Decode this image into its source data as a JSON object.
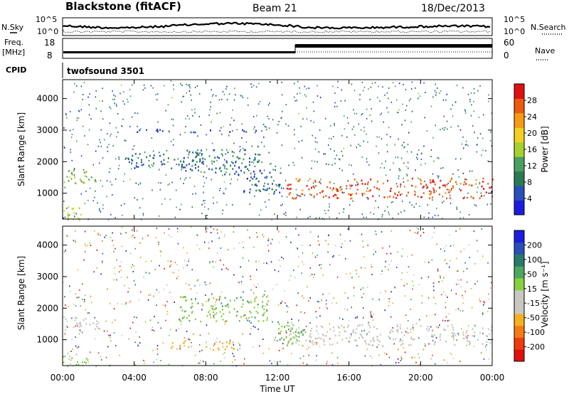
{
  "header": {
    "station": "Blackstone (fitACF)",
    "beam": "Beam 21",
    "date": "18/Dec/2013"
  },
  "summary": {
    "left_noise_label": "N.Sky",
    "right_noise_label": "N.Search",
    "left_noise_ticks": [
      "10^5",
      "10^0"
    ],
    "right_noise_ticks": [
      "10^5",
      "10^0"
    ],
    "freq_label_1": "Freq.",
    "freq_label_2": "[MHz]",
    "freq_ticks": [
      "18",
      "8"
    ],
    "nave_label": "Nave",
    "nave_ticks": [
      "60",
      "0"
    ],
    "cpid_label": "CPID",
    "cpid_value": "twofsound 3501"
  },
  "chart_data": [
    {
      "type": "heatmap",
      "ylabel": "Slant Range [km]",
      "y_ticks": [
        "1000",
        "2000",
        "3000",
        "4000"
      ],
      "ylim": [
        180,
        4600
      ],
      "x_ticks": [
        "00:00",
        "04:00",
        "08:00",
        "12:00",
        "16:00",
        "20:00",
        "00:00"
      ],
      "xlim_hours": [
        0,
        24
      ],
      "colorbar": {
        "label": "Power [dB]",
        "ticks": [
          "28",
          "24",
          "20",
          "16",
          "12",
          "8",
          "4"
        ],
        "range": [
          0,
          30
        ],
        "colors": [
          "#1c1ce0",
          "#2850b8",
          "#2a7a55",
          "#4aa060",
          "#a8d030",
          "#f2d020",
          "#f59a15",
          "#ee5a10",
          "#e01010"
        ]
      },
      "features": [
        {
          "t": [
            0.0,
            2.0
          ],
          "range": [
            1300,
            1750
          ],
          "value": 14
        },
        {
          "t": [
            0.0,
            1.5
          ],
          "range": [
            180,
            600
          ],
          "value": 16
        },
        {
          "t": [
            3.5,
            8.0
          ],
          "range": [
            1800,
            2300
          ],
          "value": 6
        },
        {
          "t": [
            6.5,
            11.0
          ],
          "range": [
            1600,
            2400
          ],
          "value": 8
        },
        {
          "t": [
            10.0,
            12.2
          ],
          "range": [
            1000,
            1800
          ],
          "value": 6
        },
        {
          "t": [
            12.5,
            24.0
          ],
          "range": [
            850,
            1500
          ],
          "value": 26
        },
        {
          "t": [
            4.0,
            11.0
          ],
          "range": [
            2950,
            3050
          ],
          "value": 4
        }
      ]
    },
    {
      "type": "heatmap",
      "ylabel": "Slant Range [km]",
      "y_ticks": [
        "1000",
        "2000",
        "3000",
        "4000"
      ],
      "ylim": [
        180,
        4600
      ],
      "x_ticks": [
        "00:00",
        "04:00",
        "08:00",
        "12:00",
        "16:00",
        "20:00",
        "00:00"
      ],
      "xlim_hours": [
        0,
        24
      ],
      "xlabel": "Time UT",
      "colorbar": {
        "label": "Velocity [m s⁻¹]",
        "ticks": [
          "200",
          "100",
          "50",
          "15",
          "-15",
          "-50",
          "-100",
          "-200"
        ],
        "range": [
          -250,
          250
        ],
        "colors": [
          "#e01010",
          "#f03a10",
          "#f57a15",
          "#f8b020",
          "#c8c8c0",
          "#c8c8c0",
          "#88d040",
          "#4aa860",
          "#2a7a6a",
          "#2850b8",
          "#1c1ce0"
        ]
      },
      "features": [
        {
          "t": [
            0.0,
            2.0
          ],
          "range": [
            1300,
            1750
          ],
          "value": 0
        },
        {
          "t": [
            0.0,
            1.5
          ],
          "range": [
            180,
            600
          ],
          "value": 30
        },
        {
          "t": [
            6.5,
            11.5
          ],
          "range": [
            1600,
            2400
          ],
          "value": 60
        },
        {
          "t": [
            12.5,
            24.0
          ],
          "range": [
            850,
            1500
          ],
          "value": 0
        },
        {
          "t": [
            12.0,
            13.5
          ],
          "range": [
            800,
            1600
          ],
          "value": 60
        },
        {
          "t": [
            6.0,
            10.0
          ],
          "range": [
            700,
            1000
          ],
          "value": -80
        }
      ]
    }
  ]
}
